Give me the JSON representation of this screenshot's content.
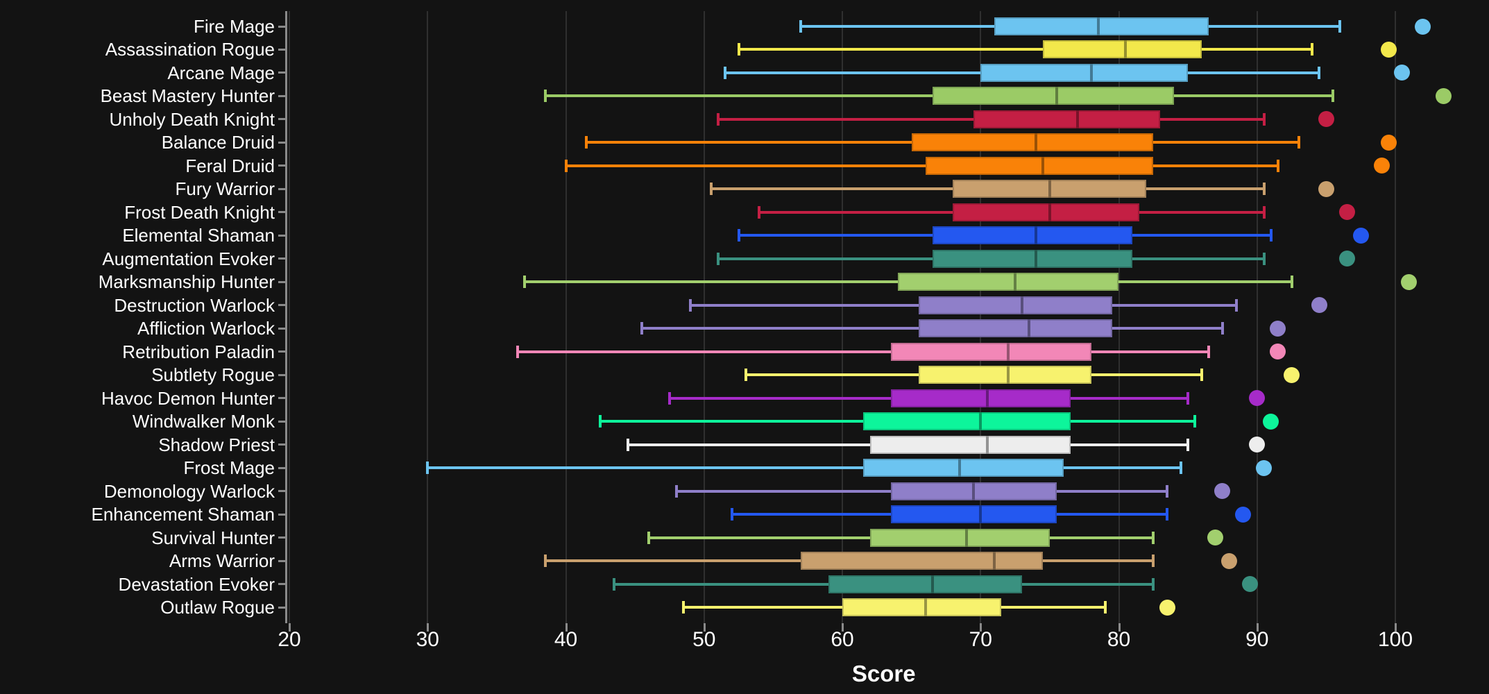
{
  "chart_data": {
    "type": "boxplot",
    "orientation": "horizontal",
    "title": "",
    "xlabel": "Score",
    "ylabel": "",
    "x_ticks": [
      20,
      30,
      40,
      50,
      60,
      70,
      80,
      90,
      100
    ],
    "x_range": [
      19.7,
      106.8
    ],
    "grid": "vertical",
    "background_color": "#131313",
    "gridline_color": "#2f2f2f",
    "axis_color": "#8a8a8a",
    "text_color": "#ffffff",
    "series": [
      {
        "label": "Fire Mage",
        "color": "#6CC4F0",
        "whisker_low": 57,
        "q1": 71,
        "median": 78.5,
        "q3": 86.5,
        "whisker_high": 96,
        "outliers": [
          102
        ]
      },
      {
        "label": "Assassination Rogue",
        "color": "#F2E84B",
        "whisker_low": 52.5,
        "q1": 74.5,
        "median": 80.5,
        "q3": 86,
        "whisker_high": 94,
        "outliers": [
          99.5
        ]
      },
      {
        "label": "Arcane Mage",
        "color": "#6CC4F0",
        "whisker_low": 51.5,
        "q1": 70,
        "median": 78,
        "q3": 85,
        "whisker_high": 94.5,
        "outliers": [
          100.5
        ]
      },
      {
        "label": "Beast Mastery Hunter",
        "color": "#9BCB66",
        "whisker_low": 38.5,
        "q1": 66.5,
        "median": 75.5,
        "q3": 84,
        "whisker_high": 95.5,
        "outliers": [
          103.5
        ]
      },
      {
        "label": "Unholy Death Knight",
        "color": "#C41F44",
        "whisker_low": 51,
        "q1": 69.5,
        "median": 77,
        "q3": 83,
        "whisker_high": 90.5,
        "outliers": [
          95
        ]
      },
      {
        "label": "Balance Druid",
        "color": "#F98208",
        "whisker_low": 41.5,
        "q1": 65,
        "median": 74,
        "q3": 82.5,
        "whisker_high": 93,
        "outliers": [
          99.5
        ]
      },
      {
        "label": "Feral Druid",
        "color": "#F98208",
        "whisker_low": 40,
        "q1": 66,
        "median": 74.5,
        "q3": 82.5,
        "whisker_high": 91.5,
        "outliers": [
          99
        ]
      },
      {
        "label": "Fury Warrior",
        "color": "#C9A06E",
        "whisker_low": 50.5,
        "q1": 68,
        "median": 75,
        "q3": 82,
        "whisker_high": 90.5,
        "outliers": [
          95
        ]
      },
      {
        "label": "Frost Death Knight",
        "color": "#C41F44",
        "whisker_low": 54,
        "q1": 68,
        "median": 75,
        "q3": 81.5,
        "whisker_high": 90.5,
        "outliers": [
          96.5
        ]
      },
      {
        "label": "Elemental Shaman",
        "color": "#2458F0",
        "whisker_low": 52.5,
        "q1": 66.5,
        "median": 74,
        "q3": 81,
        "whisker_high": 91,
        "outliers": [
          97.5
        ]
      },
      {
        "label": "Augmentation Evoker",
        "color": "#3A9180",
        "whisker_low": 51,
        "q1": 66.5,
        "median": 74,
        "q3": 81,
        "whisker_high": 90.5,
        "outliers": [
          96.5
        ]
      },
      {
        "label": "Marksmanship Hunter",
        "color": "#A2CF6E",
        "whisker_low": 37,
        "q1": 64,
        "median": 72.5,
        "q3": 80,
        "whisker_high": 92.5,
        "outliers": [
          101
        ]
      },
      {
        "label": "Destruction Warlock",
        "color": "#8F7FC9",
        "whisker_low": 49,
        "q1": 65.5,
        "median": 73,
        "q3": 79.5,
        "whisker_high": 88.5,
        "outliers": [
          94.5
        ]
      },
      {
        "label": "Affliction Warlock",
        "color": "#8F7FC9",
        "whisker_low": 45.5,
        "q1": 65.5,
        "median": 73.5,
        "q3": 79.5,
        "whisker_high": 87.5,
        "outliers": [
          91.5
        ]
      },
      {
        "label": "Retribution Paladin",
        "color": "#F287B7",
        "whisker_low": 36.5,
        "q1": 63.5,
        "median": 72,
        "q3": 78,
        "whisker_high": 86.5,
        "outliers": [
          91.5
        ]
      },
      {
        "label": "Subtlety Rogue",
        "color": "#F7F26E",
        "whisker_low": 53,
        "q1": 65.5,
        "median": 72,
        "q3": 78,
        "whisker_high": 86,
        "outliers": [
          92.5
        ]
      },
      {
        "label": "Havoc Demon Hunter",
        "color": "#A62BC9",
        "whisker_low": 47.5,
        "q1": 63.5,
        "median": 70.5,
        "q3": 76.5,
        "whisker_high": 85,
        "outliers": [
          90
        ]
      },
      {
        "label": "Windwalker Monk",
        "color": "#0DF59B",
        "whisker_low": 42.5,
        "q1": 61.5,
        "median": 70,
        "q3": 76.5,
        "whisker_high": 85.5,
        "outliers": [
          91
        ]
      },
      {
        "label": "Shadow Priest",
        "color": "#EDEDED",
        "whisker_low": 44.5,
        "q1": 62,
        "median": 70.5,
        "q3": 76.5,
        "whisker_high": 85,
        "outliers": [
          90
        ]
      },
      {
        "label": "Frost Mage",
        "color": "#6CC4F0",
        "whisker_low": 30,
        "q1": 61.5,
        "median": 68.5,
        "q3": 76,
        "whisker_high": 84.5,
        "outliers": [
          90.5
        ]
      },
      {
        "label": "Demonology Warlock",
        "color": "#8F7FC9",
        "whisker_low": 48,
        "q1": 63.5,
        "median": 69.5,
        "q3": 75.5,
        "whisker_high": 83.5,
        "outliers": [
          87.5
        ]
      },
      {
        "label": "Enhancement Shaman",
        "color": "#2458F0",
        "whisker_low": 52,
        "q1": 63.5,
        "median": 70,
        "q3": 75.5,
        "whisker_high": 83.5,
        "outliers": [
          89
        ]
      },
      {
        "label": "Survival Hunter",
        "color": "#A2CF6E",
        "whisker_low": 46,
        "q1": 62,
        "median": 69,
        "q3": 75,
        "whisker_high": 82.5,
        "outliers": [
          87
        ]
      },
      {
        "label": "Arms Warrior",
        "color": "#C9A06E",
        "whisker_low": 38.5,
        "q1": 57,
        "median": 71,
        "q3": 74.5,
        "whisker_high": 82.5,
        "outliers": [
          88
        ]
      },
      {
        "label": "Devastation Evoker",
        "color": "#3A9180",
        "whisker_low": 43.5,
        "q1": 59,
        "median": 66.5,
        "q3": 73,
        "whisker_high": 82.5,
        "outliers": [
          89.5
        ]
      },
      {
        "label": "Outlaw Rogue",
        "color": "#F7F26E",
        "whisker_low": 48.5,
        "q1": 60,
        "median": 66,
        "q3": 71.5,
        "whisker_high": 79,
        "outliers": [
          83.5
        ]
      }
    ]
  }
}
